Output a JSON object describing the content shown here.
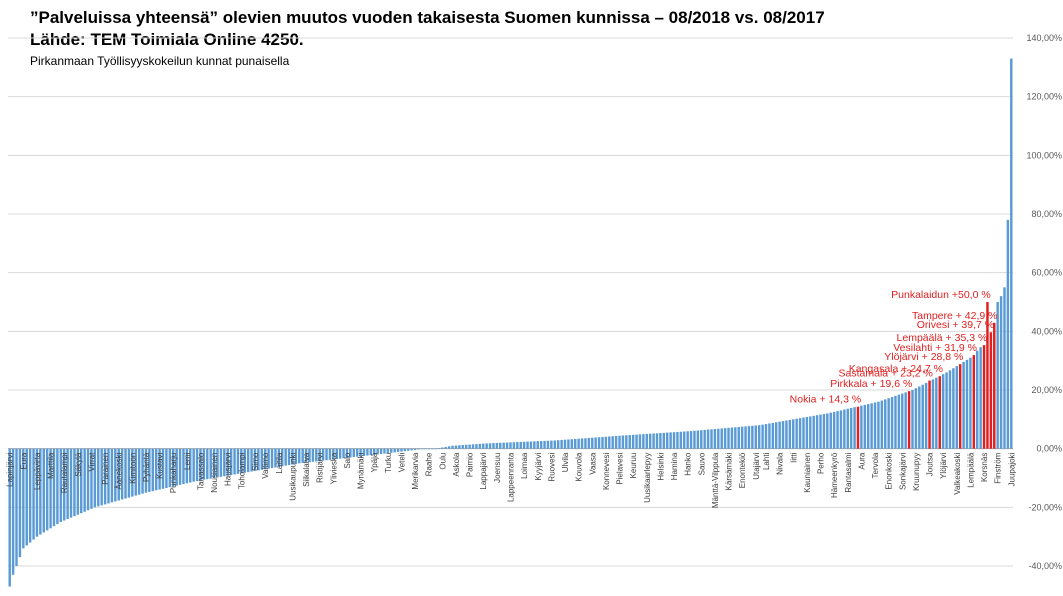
{
  "title": "”Palveluissa yhteensä” olevien muutos vuoden takaisesta Suomen kunnissa – 08/2018 vs. 08/2017",
  "source": "Lähde: TEM Toimiala Online 4250.",
  "note": "Pirkanmaan Työllisyyskokeilun kunnat punaisella",
  "colors": {
    "bar": "#5b9bd5",
    "highlight": "#e02020",
    "grid": "#d9d9d9",
    "axis": "#595959"
  },
  "chart_data": {
    "type": "bar",
    "title": "”Palveluissa yhteensä” olevien muutos vuoden takaisesta Suomen kunnissa – 08/2018 vs. 08/2017",
    "xlabel": "",
    "ylabel": "",
    "ylim": [
      -0.4,
      1.4
    ],
    "grid": true,
    "y_axis_position": "right",
    "yticks": [
      "140,00%",
      "120,00%",
      "100,00%",
      "80,00%",
      "60,00%",
      "40,00%",
      "20,00%",
      "0,00%",
      "-20,00%",
      "-40,00%"
    ],
    "n_bars": 295,
    "first_bar": -0.47,
    "last_bars": [
      0.5,
      0.52,
      0.55,
      0.78,
      1.33
    ],
    "knots": [
      [
        0,
        -0.47
      ],
      [
        1,
        -0.43
      ],
      [
        4,
        -0.34
      ],
      [
        8,
        -0.3
      ],
      [
        15,
        -0.25
      ],
      [
        25,
        -0.2
      ],
      [
        40,
        -0.15
      ],
      [
        55,
        -0.11
      ],
      [
        70,
        -0.08
      ],
      [
        85,
        -0.05
      ],
      [
        100,
        -0.03
      ],
      [
        115,
        -0.01
      ],
      [
        122,
        0.0
      ],
      [
        125,
        0.0
      ],
      [
        130,
        0.01
      ],
      [
        140,
        0.018
      ],
      [
        160,
        0.028
      ],
      [
        180,
        0.045
      ],
      [
        200,
        0.06
      ],
      [
        220,
        0.08
      ],
      [
        240,
        0.12
      ],
      [
        255,
        0.16
      ],
      [
        265,
        0.2
      ],
      [
        275,
        0.26
      ],
      [
        282,
        0.31
      ],
      [
        287,
        0.37
      ],
      [
        289,
        0.42
      ]
    ],
    "tick_labels": [
      "Lapinjärvi",
      "Eura",
      "Leppävirta",
      "Marttila",
      "Rautalampi",
      "Säkylä",
      "Virrat",
      "Parainen",
      "Äänekoski",
      "Kimitoön",
      "Pyhäntä",
      "Kustavi",
      "Punkaharju",
      "Lemi",
      "Taivassalo",
      "Nousiainen",
      "Hausjärvi",
      "Toholampi",
      "Simo",
      "Valtimo",
      "Laitila",
      "Uusikaupunki",
      "Siikalatva",
      "Ristijärvi",
      "Ylivieska",
      "Salo",
      "Mynämäki",
      "Ypäjä",
      "Turku",
      "Veteli",
      "Merikarvia",
      "Raahe",
      "Oulu",
      "Askola",
      "Paimio",
      "Lappajärvi",
      "Joensuu",
      "Lappeenranta",
      "Loimaa",
      "Kyyjärvi",
      "Ruovesi",
      "Ulvila",
      "Kouvola",
      "Vaasa",
      "Konnevesi",
      "Pielavesi",
      "Keuruu",
      "Uusikaarlepyy",
      "Helsinki",
      "Hamina",
      "Hanko",
      "Sauvo",
      "Mänttä-Vilppula",
      "Kärsämäki",
      "Enontekiö",
      "Utajärvi",
      "Lahti",
      "Nivala",
      "Iitti",
      "Kauniainen",
      "Perho",
      "Hämeenkyrö",
      "Rantasalmi",
      "Aura",
      "Tervola",
      "Enonkoski",
      "Sonkajärvi",
      "Kruunupyy",
      "Joutsa",
      "Ylöjärvi",
      "Valkeakoski",
      "Lempäälä",
      "Korsnäs",
      "Finström",
      "Juupajoki"
    ],
    "highlighted": [
      {
        "label": "Nokia + 14,3 %",
        "value": 0.143
      },
      {
        "label": "Pirkkala + 19,6 %",
        "value": 0.196
      },
      {
        "label": "Sastamala + 23,2 %",
        "value": 0.232
      },
      {
        "label": "Kangasala + 24,7 %",
        "value": 0.247
      },
      {
        "label": "Ylöjärvi + 28,8 %",
        "value": 0.288
      },
      {
        "label": "Vesilahti + 31,9 %",
        "value": 0.319
      },
      {
        "label": "Lempäälä + 35,3 %",
        "value": 0.353
      },
      {
        "label": "Orivesi + 39,7 %",
        "value": 0.397
      },
      {
        "label": "Tampere + 42,9 %",
        "value": 0.429
      },
      {
        "label": "Punkalaidun +50,0 %",
        "value": 0.5
      }
    ]
  }
}
